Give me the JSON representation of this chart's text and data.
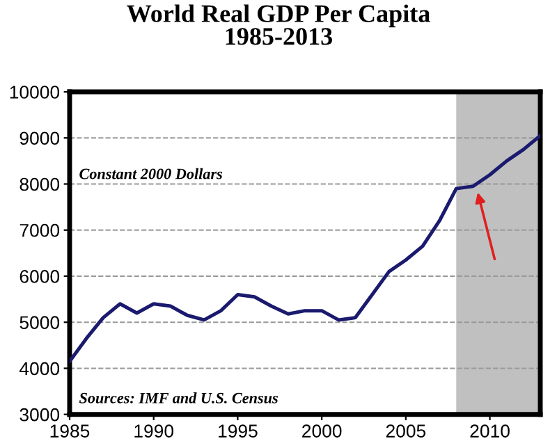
{
  "chart_data": {
    "type": "line",
    "title": "World Real GDP Per Capita\n1985-2013",
    "x": [
      1985,
      1986,
      1987,
      1988,
      1989,
      1990,
      1991,
      1992,
      1993,
      1994,
      1995,
      1996,
      1997,
      1998,
      1999,
      2000,
      2001,
      2002,
      2003,
      2004,
      2005,
      2006,
      2007,
      2008,
      2009,
      2010,
      2011,
      2012,
      2013
    ],
    "series": [
      {
        "color": "#1a1a6e",
        "values": [
          4150,
          4650,
          5100,
          5400,
          5200,
          5400,
          5350,
          5150,
          5050,
          5250,
          5600,
          5550,
          5350,
          5180,
          5250,
          5250,
          5050,
          5100,
          5600,
          6100,
          6350,
          6650,
          7200,
          7900,
          7950,
          8200,
          8500,
          8750,
          9050
        ]
      }
    ],
    "xlim": [
      1985,
      2013
    ],
    "xticks": [
      1985,
      1990,
      1995,
      2000,
      2005,
      2010
    ],
    "ylim": [
      3000,
      10000
    ],
    "yticks": [
      3000,
      4000,
      5000,
      6000,
      7000,
      8000,
      9000,
      10000
    ],
    "grid": "y",
    "bands": [
      {
        "axis": "x",
        "from": 2008,
        "to": 2013,
        "color": "#c0c0c0"
      }
    ],
    "annotations": [
      "Constant 2000 Dollars",
      "Sources: IMF and U.S. Census"
    ]
  }
}
